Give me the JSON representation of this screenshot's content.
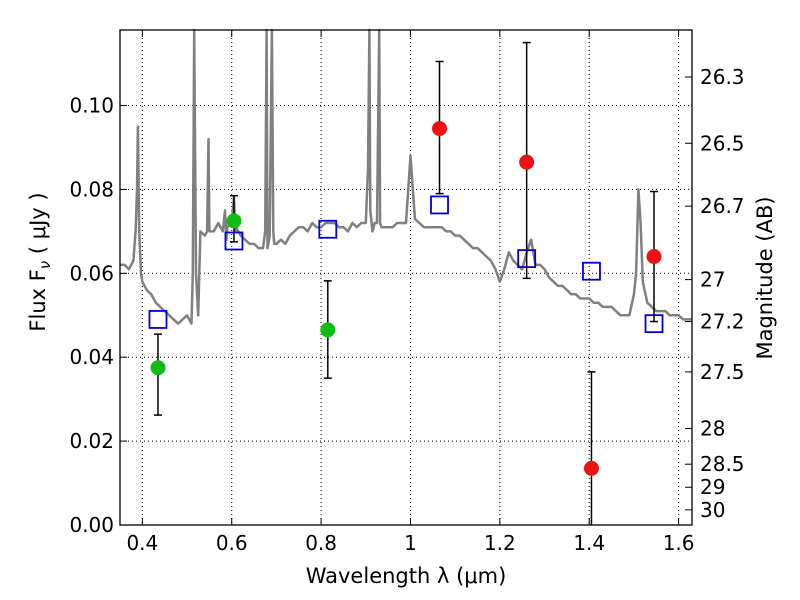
{
  "chart_data": {
    "type": "scatter",
    "title": "",
    "xlabel": "Wavelength  λ (μm)",
    "ylabel": "Flux  F",
    "ylabel_subscript": "ν",
    "ylabel_units": " ( μJy )",
    "ylabel_right": "Magnitude (AB)",
    "xlim": [
      0.35,
      1.63
    ],
    "ylim": [
      0.0,
      0.118
    ],
    "grid": true,
    "x_ticks": [
      {
        "value": 0.4,
        "label": "0.4"
      },
      {
        "value": 0.6,
        "label": "0.6"
      },
      {
        "value": 0.8,
        "label": "0.8"
      },
      {
        "value": 1.0,
        "label": "1"
      },
      {
        "value": 1.2,
        "label": "1.2"
      },
      {
        "value": 1.4,
        "label": "1.4"
      },
      {
        "value": 1.6,
        "label": "1.6"
      }
    ],
    "y_ticks": [
      {
        "value": 0.0,
        "label": "0.00"
      },
      {
        "value": 0.02,
        "label": "0.02"
      },
      {
        "value": 0.04,
        "label": "0.04"
      },
      {
        "value": 0.06,
        "label": "0.06"
      },
      {
        "value": 0.08,
        "label": "0.08"
      },
      {
        "value": 0.1,
        "label": "0.10"
      }
    ],
    "right_ticks": [
      {
        "flux": 0.1068,
        "label": "26.3"
      },
      {
        "flux": 0.091,
        "label": "26.5"
      },
      {
        "flux": 0.076,
        "label": "26.7"
      },
      {
        "flux": 0.0585,
        "label": "27"
      },
      {
        "flux": 0.0485,
        "label": "27.2"
      },
      {
        "flux": 0.0365,
        "label": "27.5"
      },
      {
        "flux": 0.023,
        "label": "28"
      },
      {
        "flux": 0.0145,
        "label": "28.5"
      },
      {
        "flux": 0.009,
        "label": "29"
      },
      {
        "flux": 0.0036,
        "label": "30"
      }
    ],
    "colors": {
      "model": "#808080",
      "green": "#11bb11",
      "red": "#ee1111",
      "box": "#0000dd",
      "error": "#000000"
    },
    "series": [
      {
        "name": "model spectrum",
        "kind": "line",
        "x": [
          0.35,
          0.36,
          0.37,
          0.38,
          0.385,
          0.388,
          0.39,
          0.393,
          0.397,
          0.4,
          0.41,
          0.42,
          0.43,
          0.44,
          0.45,
          0.46,
          0.47,
          0.48,
          0.49,
          0.5,
          0.51,
          0.513,
          0.516,
          0.52,
          0.525,
          0.53,
          0.54,
          0.545,
          0.548,
          0.55,
          0.56,
          0.57,
          0.58,
          0.585,
          0.588,
          0.59,
          0.6,
          0.605,
          0.608,
          0.61,
          0.62,
          0.63,
          0.64,
          0.65,
          0.66,
          0.67,
          0.675,
          0.678,
          0.68,
          0.685,
          0.69,
          0.693,
          0.695,
          0.7,
          0.71,
          0.72,
          0.73,
          0.74,
          0.75,
          0.76,
          0.77,
          0.78,
          0.79,
          0.8,
          0.81,
          0.82,
          0.83,
          0.84,
          0.85,
          0.86,
          0.87,
          0.88,
          0.89,
          0.9,
          0.905,
          0.908,
          0.91,
          0.915,
          0.92,
          0.925,
          0.93,
          0.932,
          0.935,
          0.94,
          0.95,
          0.96,
          0.97,
          0.98,
          0.99,
          1.0,
          1.01,
          1.02,
          1.03,
          1.04,
          1.05,
          1.06,
          1.07,
          1.08,
          1.09,
          1.1,
          1.11,
          1.12,
          1.13,
          1.14,
          1.15,
          1.16,
          1.17,
          1.18,
          1.19,
          1.2,
          1.21,
          1.22,
          1.23,
          1.24,
          1.25,
          1.26,
          1.27,
          1.28,
          1.29,
          1.3,
          1.31,
          1.32,
          1.33,
          1.34,
          1.35,
          1.36,
          1.37,
          1.38,
          1.39,
          1.4,
          1.41,
          1.42,
          1.43,
          1.44,
          1.45,
          1.46,
          1.47,
          1.48,
          1.49,
          1.5,
          1.505,
          1.51,
          1.515,
          1.52,
          1.53,
          1.54,
          1.55,
          1.56,
          1.57,
          1.58,
          1.59,
          1.6,
          1.61,
          1.62,
          1.63
        ],
        "y": [
          0.062,
          0.062,
          0.061,
          0.063,
          0.07,
          0.08,
          0.095,
          0.07,
          0.06,
          0.058,
          0.056,
          0.055,
          0.053,
          0.052,
          0.051,
          0.05,
          0.049,
          0.048,
          0.049,
          0.05,
          0.048,
          0.06,
          0.118,
          0.06,
          0.05,
          0.07,
          0.069,
          0.07,
          0.092,
          0.07,
          0.07,
          0.072,
          0.07,
          0.075,
          0.068,
          0.071,
          0.072,
          0.078,
          0.07,
          0.071,
          0.069,
          0.068,
          0.067,
          0.067,
          0.066,
          0.066,
          0.07,
          0.118,
          0.066,
          0.069,
          0.118,
          0.07,
          0.067,
          0.067,
          0.068,
          0.067,
          0.069,
          0.07,
          0.071,
          0.071,
          0.07,
          0.072,
          0.071,
          0.071,
          0.072,
          0.072,
          0.072,
          0.071,
          0.071,
          0.07,
          0.072,
          0.071,
          0.072,
          0.072,
          0.085,
          0.118,
          0.075,
          0.07,
          0.072,
          0.072,
          0.118,
          0.072,
          0.071,
          0.071,
          0.071,
          0.071,
          0.072,
          0.072,
          0.072,
          0.088,
          0.073,
          0.072,
          0.071,
          0.071,
          0.071,
          0.071,
          0.071,
          0.07,
          0.07,
          0.069,
          0.069,
          0.068,
          0.067,
          0.066,
          0.066,
          0.065,
          0.064,
          0.063,
          0.061,
          0.058,
          0.061,
          0.065,
          0.063,
          0.062,
          0.061,
          0.065,
          0.068,
          0.062,
          0.062,
          0.061,
          0.059,
          0.058,
          0.057,
          0.057,
          0.056,
          0.055,
          0.055,
          0.054,
          0.054,
          0.054,
          0.053,
          0.053,
          0.052,
          0.052,
          0.052,
          0.051,
          0.05,
          0.05,
          0.05,
          0.055,
          0.06,
          0.08,
          0.072,
          0.058,
          0.053,
          0.052,
          0.051,
          0.051,
          0.051,
          0.05,
          0.05,
          0.05,
          0.049,
          0.049,
          0.049
        ]
      },
      {
        "name": "green points",
        "kind": "circle",
        "color": "#11bb11",
        "points": [
          {
            "x": 0.435,
            "y": 0.0375,
            "err_low": 0.0262,
            "err_high": 0.0455
          },
          {
            "x": 0.605,
            "y": 0.0725,
            "err_low": 0.0675,
            "err_high": 0.0785
          },
          {
            "x": 0.815,
            "y": 0.0465,
            "err_low": 0.035,
            "err_high": 0.0582
          }
        ]
      },
      {
        "name": "red points",
        "kind": "circle",
        "color": "#ee1111",
        "points": [
          {
            "x": 1.065,
            "y": 0.0945,
            "err_low": 0.079,
            "err_high": 0.1105
          },
          {
            "x": 1.26,
            "y": 0.0865,
            "err_low": 0.0588,
            "err_high": 0.115
          },
          {
            "x": 1.405,
            "y": 0.0135,
            "err_low": 0.0,
            "err_high": 0.0365
          },
          {
            "x": 1.545,
            "y": 0.064,
            "err_low": 0.0485,
            "err_high": 0.0795
          }
        ]
      },
      {
        "name": "model band fluxes",
        "kind": "square",
        "color": "#0000dd",
        "points": [
          {
            "x": 0.435,
            "y": 0.049
          },
          {
            "x": 0.605,
            "y": 0.0677
          },
          {
            "x": 0.815,
            "y": 0.0705
          },
          {
            "x": 1.065,
            "y": 0.0763
          },
          {
            "x": 1.26,
            "y": 0.0635
          },
          {
            "x": 1.405,
            "y": 0.0605
          },
          {
            "x": 1.545,
            "y": 0.048
          }
        ]
      }
    ]
  }
}
